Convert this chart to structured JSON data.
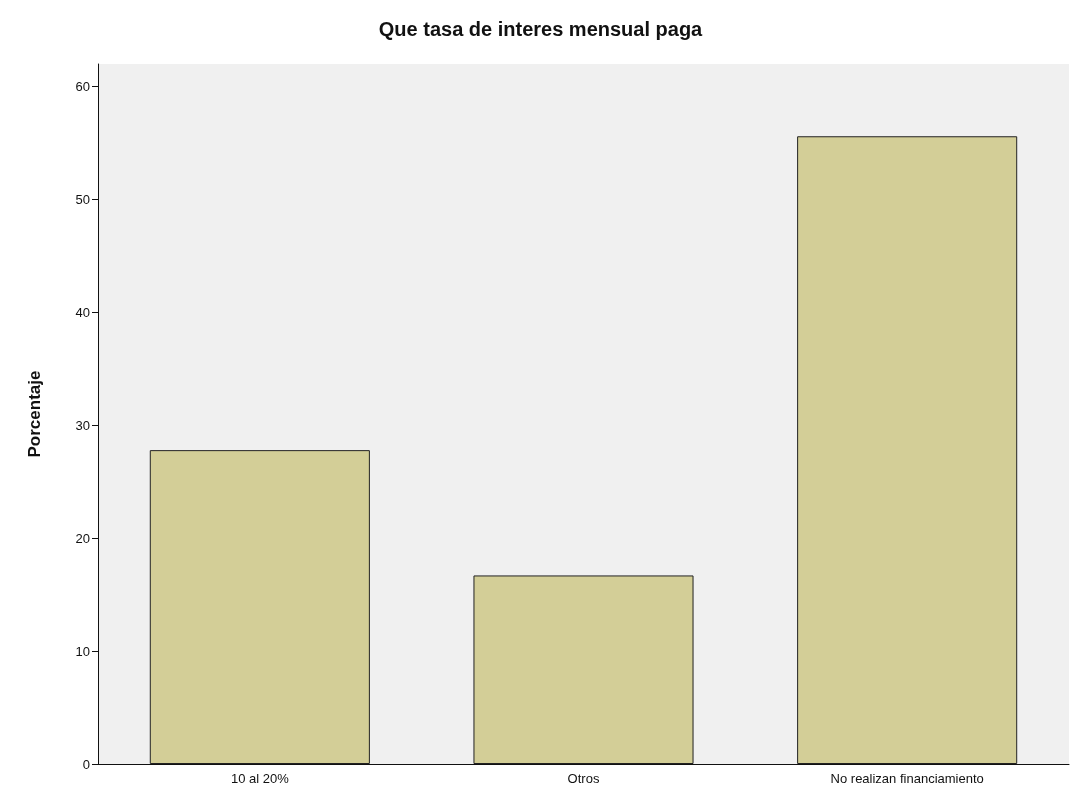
{
  "chart_data": {
    "type": "bar",
    "title": "Que tasa de interes mensual paga",
    "ylabel": "Porcentaje",
    "categories": [
      "10 al 20%",
      "Otros",
      "No realizan financiamiento"
    ],
    "values": [
      27.8,
      16.7,
      55.6
    ],
    "color": "#d3ce97",
    "ylim": [
      0,
      62
    ],
    "yticks": [
      0,
      10,
      20,
      30,
      40,
      50,
      60
    ],
    "grid": false
  }
}
